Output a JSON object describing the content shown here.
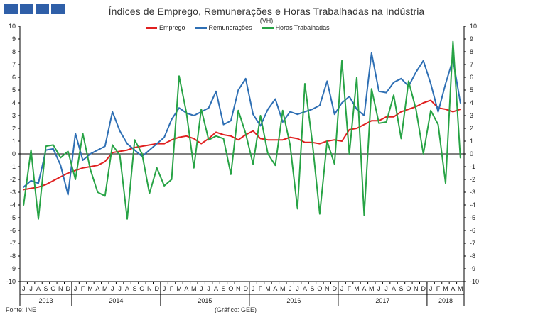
{
  "page": {
    "title": "Índices de Emprego, Remunerações e Horas Trabalhadas na Indústria",
    "unit": "(VH)",
    "source": "Fonte: INE",
    "credit": "(Gráfico: GEE)"
  },
  "chart_data": {
    "type": "line",
    "title": "Índices de Emprego, Remunerações e Horas Trabalhadas na Indústria",
    "subtitle": "(VH)",
    "ylim": [
      -10,
      10
    ],
    "y_ticks": [
      -10,
      -9,
      -8,
      -7,
      -6,
      -5,
      -4,
      -3,
      -2,
      -1,
      0,
      1,
      2,
      3,
      4,
      5,
      6,
      7,
      8,
      9,
      10
    ],
    "secondary_y_ticks": [
      -10,
      -9,
      -8,
      -7,
      -6,
      -5,
      -4,
      -3,
      -2,
      -1,
      0,
      1,
      2,
      3,
      4,
      5,
      6,
      7,
      8,
      9,
      10
    ],
    "legend_position": "top",
    "grid": false,
    "x": [
      "J",
      "J",
      "A",
      "S",
      "O",
      "N",
      "D",
      "J",
      "F",
      "M",
      "A",
      "M",
      "J",
      "J",
      "A",
      "S",
      "O",
      "N",
      "D",
      "J",
      "F",
      "M",
      "A",
      "M",
      "J",
      "J",
      "A",
      "S",
      "O",
      "N",
      "D",
      "J",
      "F",
      "M",
      "A",
      "M",
      "J",
      "J",
      "A",
      "S",
      "O",
      "N",
      "D",
      "J",
      "F",
      "M",
      "A",
      "M",
      "J",
      "J",
      "A",
      "S",
      "O",
      "N",
      "D",
      "J",
      "F",
      "M",
      "A",
      "M"
    ],
    "years": [
      {
        "label": "2013",
        "start": 0,
        "end": 6
      },
      {
        "label": "2014",
        "start": 7,
        "end": 18
      },
      {
        "label": "2015",
        "start": 19,
        "end": 30
      },
      {
        "label": "2016",
        "start": 31,
        "end": 42
      },
      {
        "label": "2017",
        "start": 43,
        "end": 54
      },
      {
        "label": "2018",
        "start": 55,
        "end": 59
      }
    ],
    "series": [
      {
        "name": "Emprego",
        "color": "#e02020",
        "values": [
          -2.8,
          -2.7,
          -2.6,
          -2.4,
          -2.1,
          -1.8,
          -1.5,
          -1.3,
          -1.1,
          -1.0,
          -0.9,
          -0.6,
          0.1,
          0.2,
          0.3,
          0.5,
          0.6,
          0.7,
          0.8,
          0.8,
          1.1,
          1.3,
          1.4,
          1.2,
          0.8,
          1.2,
          1.7,
          1.5,
          1.4,
          1.1,
          1.5,
          1.8,
          1.2,
          1.1,
          1.1,
          1.1,
          1.3,
          1.2,
          0.9,
          0.9,
          0.8,
          1.0,
          1.1,
          1.0,
          1.9,
          2.0,
          2.3,
          2.6,
          2.6,
          2.9,
          2.9,
          3.3,
          3.5,
          3.7,
          4.0,
          4.2,
          3.6,
          3.5,
          3.3,
          3.5
        ]
      },
      {
        "name": "Remunerações",
        "color": "#2e6fb4",
        "values": [
          -2.6,
          -2.1,
          -2.3,
          0.3,
          0.4,
          -0.9,
          -3.2,
          1.6,
          -0.5,
          0.0,
          0.3,
          0.6,
          3.3,
          1.8,
          0.8,
          0.3,
          -0.2,
          0.3,
          0.8,
          1.3,
          2.7,
          3.6,
          3.2,
          3.0,
          3.3,
          3.6,
          4.9,
          2.3,
          2.6,
          5.0,
          5.9,
          3.1,
          2.2,
          3.5,
          4.3,
          2.5,
          3.3,
          3.1,
          3.3,
          3.5,
          3.8,
          5.7,
          3.1,
          4.0,
          4.5,
          3.5,
          3.0,
          7.9,
          4.9,
          4.8,
          5.6,
          5.9,
          5.3,
          6.4,
          7.3,
          5.5,
          3.3,
          5.5,
          7.4,
          4.0
        ]
      },
      {
        "name": "Horas Trabalhadas",
        "color": "#27a345",
        "values": [
          -4.0,
          0.3,
          -5.1,
          0.6,
          0.7,
          -0.3,
          0.2,
          -2.0,
          1.6,
          -1.2,
          -3.0,
          -3.3,
          0.7,
          -0.1,
          -5.1,
          1.1,
          0.0,
          -3.1,
          -1.1,
          -2.5,
          -2.0,
          6.1,
          3.2,
          -1.1,
          3.5,
          1.1,
          1.4,
          1.2,
          -1.6,
          3.4,
          1.6,
          -0.8,
          3.0,
          0.0,
          -0.9,
          3.4,
          0.7,
          -4.3,
          5.5,
          0.9,
          -4.7,
          1.0,
          -0.8,
          7.3,
          0.0,
          6.0,
          -4.8,
          5.1,
          2.4,
          2.5,
          4.6,
          1.2,
          5.7,
          3.5,
          0.0,
          3.4,
          2.3,
          -2.3,
          8.8,
          -0.3
        ]
      }
    ]
  }
}
